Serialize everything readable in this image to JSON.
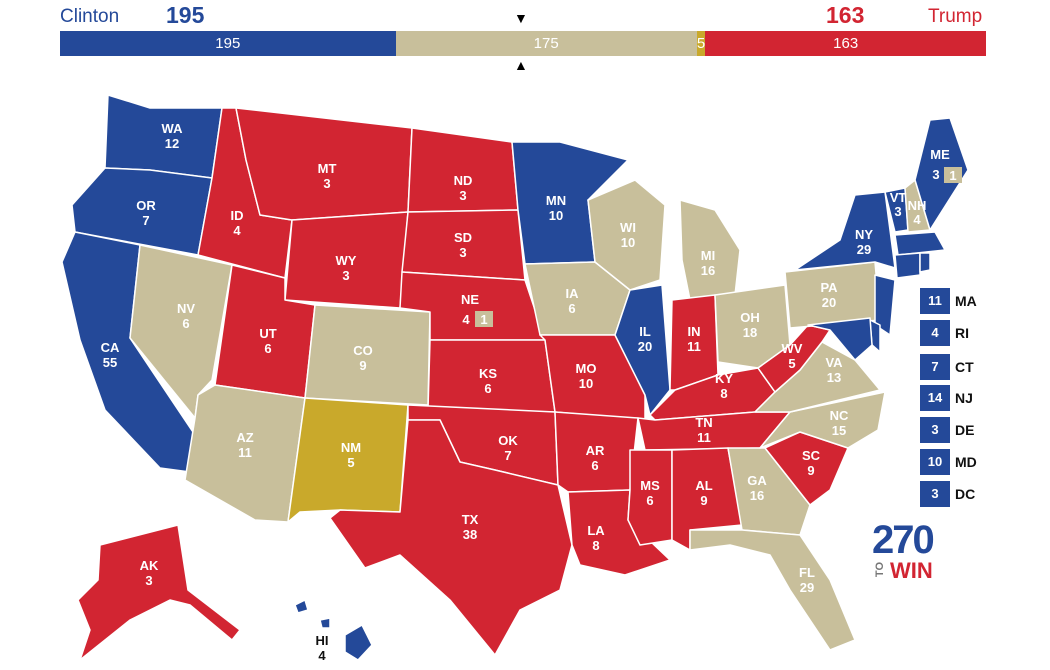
{
  "header": {
    "dem_name": "Clinton",
    "rep_name": "Trump",
    "dem_total": "195",
    "rep_total": "163",
    "arrow_down": "▼",
    "arrow_up": "▲"
  },
  "bar": {
    "total_votes": 538,
    "segments": [
      {
        "label": "195",
        "value": 195,
        "color": "#244999"
      },
      {
        "label": "175",
        "value": 175,
        "color": "#c8bf9b"
      },
      {
        "label": "5",
        "value": 5,
        "color": "#c9a92b"
      },
      {
        "label": "163",
        "value": 163,
        "color": "#d22532"
      }
    ]
  },
  "colors": {
    "dem": "#244999",
    "rep": "#d22532",
    "tossup": "#c8bf9b",
    "third": "#c9a92b"
  },
  "states": [
    {
      "abbr": "WA",
      "votes": "12",
      "party": "dem"
    },
    {
      "abbr": "OR",
      "votes": "7",
      "party": "dem"
    },
    {
      "abbr": "CA",
      "votes": "55",
      "party": "dem"
    },
    {
      "abbr": "NV",
      "votes": "6",
      "party": "tossup"
    },
    {
      "abbr": "ID",
      "votes": "4",
      "party": "rep"
    },
    {
      "abbr": "MT",
      "votes": "3",
      "party": "rep"
    },
    {
      "abbr": "WY",
      "votes": "3",
      "party": "rep"
    },
    {
      "abbr": "UT",
      "votes": "6",
      "party": "rep"
    },
    {
      "abbr": "AZ",
      "votes": "11",
      "party": "tossup"
    },
    {
      "abbr": "CO",
      "votes": "9",
      "party": "tossup"
    },
    {
      "abbr": "NM",
      "votes": "5",
      "party": "third"
    },
    {
      "abbr": "ND",
      "votes": "3",
      "party": "rep"
    },
    {
      "abbr": "SD",
      "votes": "3",
      "party": "rep"
    },
    {
      "abbr": "NE",
      "votes": "4",
      "party": "rep"
    },
    {
      "abbr": "KS",
      "votes": "6",
      "party": "rep"
    },
    {
      "abbr": "OK",
      "votes": "7",
      "party": "rep"
    },
    {
      "abbr": "TX",
      "votes": "38",
      "party": "rep"
    },
    {
      "abbr": "MN",
      "votes": "10",
      "party": "dem"
    },
    {
      "abbr": "IA",
      "votes": "6",
      "party": "tossup"
    },
    {
      "abbr": "MO",
      "votes": "10",
      "party": "rep"
    },
    {
      "abbr": "AR",
      "votes": "6",
      "party": "rep"
    },
    {
      "abbr": "LA",
      "votes": "8",
      "party": "rep"
    },
    {
      "abbr": "WI",
      "votes": "10",
      "party": "tossup"
    },
    {
      "abbr": "IL",
      "votes": "20",
      "party": "dem"
    },
    {
      "abbr": "MI",
      "votes": "16",
      "party": "tossup"
    },
    {
      "abbr": "IN",
      "votes": "11",
      "party": "rep"
    },
    {
      "abbr": "OH",
      "votes": "18",
      "party": "tossup"
    },
    {
      "abbr": "KY",
      "votes": "8",
      "party": "rep"
    },
    {
      "abbr": "TN",
      "votes": "11",
      "party": "rep"
    },
    {
      "abbr": "MS",
      "votes": "6",
      "party": "rep"
    },
    {
      "abbr": "AL",
      "votes": "9",
      "party": "rep"
    },
    {
      "abbr": "GA",
      "votes": "16",
      "party": "tossup"
    },
    {
      "abbr": "FL",
      "votes": "29",
      "party": "tossup"
    },
    {
      "abbr": "SC",
      "votes": "9",
      "party": "rep"
    },
    {
      "abbr": "NC",
      "votes": "15",
      "party": "tossup"
    },
    {
      "abbr": "VA",
      "votes": "13",
      "party": "tossup"
    },
    {
      "abbr": "WV",
      "votes": "5",
      "party": "rep"
    },
    {
      "abbr": "PA",
      "votes": "20",
      "party": "tossup"
    },
    {
      "abbr": "NY",
      "votes": "29",
      "party": "dem"
    },
    {
      "abbr": "VT",
      "votes": "3",
      "party": "dem"
    },
    {
      "abbr": "NH",
      "votes": "4",
      "party": "tossup"
    },
    {
      "abbr": "ME",
      "votes": "3",
      "party": "dem"
    },
    {
      "abbr": "AK",
      "votes": "3",
      "party": "rep"
    },
    {
      "abbr": "HI",
      "votes": "4",
      "party": "dem"
    }
  ],
  "split_districts": {
    "ne_district": {
      "votes": "1",
      "party": "tossup"
    },
    "me_district": {
      "votes": "1",
      "party": "tossup"
    }
  },
  "small_states": [
    {
      "abbr": "MA",
      "votes": "11"
    },
    {
      "abbr": "RI",
      "votes": "4"
    },
    {
      "abbr": "CT",
      "votes": "7"
    },
    {
      "abbr": "NJ",
      "votes": "14"
    },
    {
      "abbr": "DE",
      "votes": "3"
    },
    {
      "abbr": "MD",
      "votes": "10"
    },
    {
      "abbr": "DC",
      "votes": "3"
    }
  ],
  "logo": {
    "number": "270",
    "to": "TO",
    "win": "WIN"
  }
}
